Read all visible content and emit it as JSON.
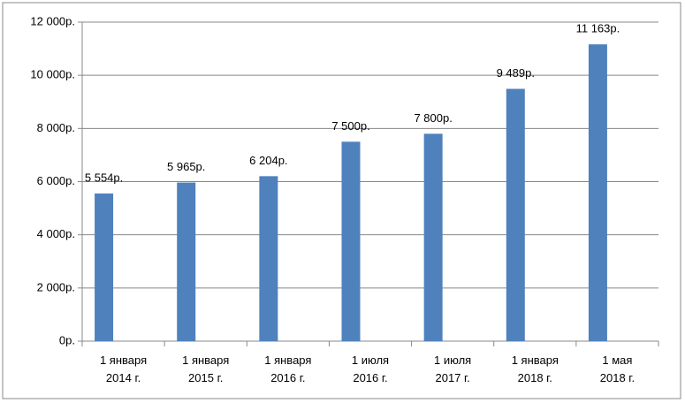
{
  "chart_data": {
    "type": "bar",
    "categories": [
      "1 января\n2014 г.",
      "1 января\n2015 г.",
      "1 января\n2016 г.",
      "1 июля\n2016 г.",
      "1 июля\n2017 г.",
      "1 января\n2018 г.",
      "1 мая\n2018 г."
    ],
    "values": [
      5554,
      5965,
      6204,
      7500,
      7800,
      9489,
      11163
    ],
    "value_labels": [
      "5 554р.",
      "5 965р.",
      "6 204р.",
      "7 500р.",
      "7 800р.",
      "9 489р.",
      "11 163р."
    ],
    "color": "#4f81bd",
    "ylim": [
      0,
      12000
    ],
    "yticks": [
      {
        "value": 0,
        "label": "0р."
      },
      {
        "value": 2000,
        "label": "2 000р."
      },
      {
        "value": 4000,
        "label": "4 000р."
      },
      {
        "value": 6000,
        "label": "6 000р."
      },
      {
        "value": 8000,
        "label": "8 000р."
      },
      {
        "value": 10000,
        "label": "10 000р."
      },
      {
        "value": 12000,
        "label": "12 000р."
      }
    ],
    "grid": true
  }
}
